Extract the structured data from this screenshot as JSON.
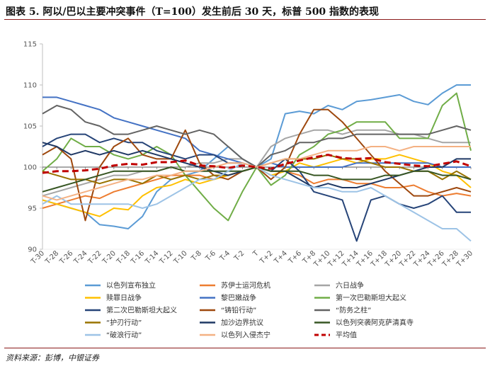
{
  "figure": {
    "title": "图表 5. 阿以/巴以主要冲突事件（T=100）发生前后 30 天，标普 500 指数的表现",
    "source": "资料来源：彭博，中银证券"
  },
  "chart_data": {
    "type": "line",
    "title": "",
    "xlabel": "",
    "ylabel": "",
    "ylim": [
      90,
      115
    ],
    "yticks": [
      90,
      95,
      100,
      105,
      110,
      115
    ],
    "grid": false,
    "legend_position": "bottom",
    "x": [
      "T-30",
      "T-28",
      "T-26",
      "T-24",
      "T-22",
      "T-20",
      "T-18",
      "T-16",
      "T-14",
      "T-12",
      "T-10",
      "T-8",
      "T-6",
      "T-4",
      "T-2",
      "T",
      "T+2",
      "T+4",
      "T+6",
      "T+8",
      "T+10",
      "T+12",
      "T+14",
      "T+16",
      "T+18",
      "T+20",
      "T+22",
      "T+24",
      "T+26",
      "T+28",
      "T+30"
    ],
    "series": [
      {
        "name": "以色列宣布独立",
        "color": "#5b9bd5",
        "style": "solid",
        "values": [
          96.0,
          95.5,
          95.0,
          94.5,
          93.0,
          92.8,
          92.5,
          94.0,
          97.0,
          98.5,
          99.0,
          99.5,
          101.0,
          102.5,
          101.0,
          100.0,
          101.0,
          106.5,
          106.8,
          106.5,
          107.5,
          107.0,
          108.0,
          108.2,
          108.5,
          108.8,
          108.0,
          107.6,
          109.0,
          110.0,
          110.0
        ]
      },
      {
        "name": "苏伊士运河危机",
        "color": "#ed7d31",
        "style": "solid",
        "values": [
          95.0,
          95.5,
          96.0,
          96.5,
          96.2,
          97.0,
          97.5,
          98.0,
          98.5,
          99.0,
          99.0,
          99.0,
          98.5,
          99.0,
          99.5,
          100.0,
          99.5,
          99.5,
          99.0,
          98.0,
          98.5,
          98.5,
          98.0,
          98.0,
          97.5,
          97.5,
          97.8,
          97.0,
          96.5,
          96.8,
          96.5
        ]
      },
      {
        "name": "六日战争",
        "color": "#a5a5a5",
        "style": "solid",
        "values": [
          96.5,
          97.0,
          97.5,
          98.0,
          98.5,
          99.0,
          99.0,
          99.5,
          99.5,
          100.0,
          100.0,
          100.5,
          100.5,
          101.0,
          101.0,
          100.0,
          102.5,
          103.5,
          104.0,
          104.5,
          104.5,
          104.0,
          104.5,
          104.5,
          104.5,
          104.0,
          104.0,
          103.5,
          103.0,
          103.0,
          103.0
        ]
      },
      {
        "name": "赎罪日战争",
        "color": "#ffc000",
        "style": "solid",
        "values": [
          96.0,
          95.5,
          95.0,
          94.5,
          94.0,
          95.0,
          94.8,
          96.5,
          97.5,
          97.8,
          98.5,
          98.0,
          98.5,
          99.0,
          99.5,
          100.0,
          99.0,
          99.5,
          100.5,
          100.0,
          100.5,
          101.0,
          100.5,
          101.0,
          101.0,
          101.5,
          101.0,
          100.5,
          99.5,
          99.0,
          97.5
        ]
      },
      {
        "name": "黎巴嫩战争",
        "color": "#4472c4",
        "style": "solid",
        "values": [
          108.5,
          108.5,
          108.0,
          107.5,
          107.0,
          106.0,
          105.5,
          105.0,
          104.5,
          104.0,
          103.5,
          102.0,
          101.5,
          101.0,
          100.5,
          100.0,
          100.5,
          100.0,
          100.0,
          100.0,
          100.0,
          100.0,
          100.5,
          100.5,
          100.5,
          100.5,
          100.5,
          100.5,
          100.0,
          100.0,
          100.0
        ]
      },
      {
        "name": "第一次巴勒斯坦大起义",
        "color": "#70ad47",
        "style": "solid",
        "values": [
          99.5,
          101.0,
          103.5,
          102.5,
          102.5,
          101.5,
          101.0,
          101.5,
          102.5,
          101.5,
          99.0,
          97.0,
          95.0,
          93.5,
          97.0,
          100.0,
          97.8,
          99.0,
          101.5,
          102.5,
          104.0,
          104.5,
          105.5,
          105.5,
          105.5,
          103.5,
          103.5,
          103.5,
          107.5,
          109.0,
          102.0
        ]
      },
      {
        "name": "第二次巴勒斯坦大起义",
        "color": "#264478",
        "style": "solid",
        "values": [
          102.5,
          103.5,
          104.0,
          104.0,
          103.0,
          103.5,
          103.0,
          103.0,
          102.0,
          101.5,
          101.0,
          101.5,
          101.5,
          100.5,
          100.5,
          100.0,
          99.5,
          101.0,
          99.5,
          97.0,
          96.5,
          96.0,
          91.0,
          96.0,
          96.5,
          95.5,
          95.0,
          95.5,
          96.5,
          94.5,
          94.5
        ]
      },
      {
        "name": "“铸铅行动”",
        "color": "#9e480e",
        "style": "solid",
        "values": [
          101.5,
          102.5,
          101.0,
          93.5,
          100.0,
          102.5,
          103.5,
          101.5,
          101.0,
          101.0,
          104.5,
          100.5,
          99.0,
          98.5,
          99.5,
          100.0,
          98.5,
          100.0,
          104.0,
          107.0,
          107.0,
          105.5,
          103.5,
          101.5,
          99.5,
          98.0,
          96.5,
          96.5,
          97.0,
          97.5,
          97.0
        ]
      },
      {
        "name": "“防务之柱”",
        "color": "#636363",
        "style": "solid",
        "values": [
          106.5,
          107.5,
          107.0,
          105.5,
          105.0,
          104.0,
          104.0,
          104.5,
          105.0,
          104.5,
          104.0,
          104.5,
          104.0,
          102.5,
          101.0,
          100.0,
          101.5,
          102.0,
          103.0,
          103.0,
          103.5,
          103.5,
          104.0,
          104.0,
          104.0,
          104.0,
          104.0,
          104.0,
          104.5,
          105.0,
          104.5
        ]
      },
      {
        "name": "“护刃行动”",
        "color": "#997300",
        "style": "solid",
        "values": [
          99.5,
          99.0,
          98.5,
          98.5,
          98.0,
          98.5,
          98.5,
          98.0,
          99.0,
          98.5,
          99.0,
          98.5,
          99.0,
          99.0,
          99.5,
          100.0,
          100.5,
          101.0,
          101.0,
          101.0,
          101.5,
          101.0,
          101.0,
          100.5,
          100.0,
          100.0,
          99.5,
          99.5,
          98.5,
          99.5,
          98.5
        ]
      },
      {
        "name": "加沙边界抗议",
        "color": "#1f3864",
        "style": "solid",
        "values": [
          103.0,
          102.5,
          101.5,
          102.0,
          101.5,
          102.0,
          101.5,
          102.0,
          101.5,
          101.0,
          100.5,
          100.0,
          99.5,
          99.0,
          99.5,
          100.0,
          99.5,
          99.5,
          98.5,
          97.5,
          98.0,
          97.5,
          97.5,
          98.0,
          98.5,
          99.0,
          99.5,
          100.0,
          100.0,
          101.0,
          101.0
        ]
      },
      {
        "name": "以色列突袭阿克萨清真寺",
        "color": "#375623",
        "style": "solid",
        "values": [
          97.0,
          97.5,
          98.0,
          98.5,
          99.0,
          99.5,
          99.5,
          99.5,
          99.5,
          100.0,
          99.5,
          99.5,
          99.5,
          99.5,
          99.5,
          100.0,
          99.5,
          99.5,
          99.5,
          99.0,
          99.0,
          98.5,
          98.5,
          98.5,
          99.0,
          99.0,
          99.5,
          99.5,
          99.0,
          99.0,
          98.5
        ]
      },
      {
        "name": "“破浪行动”",
        "color": "#9dc3e6",
        "style": "solid",
        "values": [
          95.5,
          96.5,
          95.5,
          95.5,
          95.5,
          95.5,
          95.5,
          95.0,
          95.5,
          96.5,
          97.5,
          98.5,
          98.5,
          99.5,
          100.5,
          100.0,
          99.0,
          98.5,
          98.0,
          97.5,
          97.5,
          97.0,
          97.0,
          97.5,
          96.5,
          95.5,
          94.5,
          93.5,
          92.5,
          92.5,
          91.0
        ]
      },
      {
        "name": "以色列入侵杰宁",
        "color": "#f4b183",
        "style": "solid",
        "values": [
          96.5,
          96.0,
          96.5,
          97.0,
          97.5,
          98.0,
          98.5,
          98.5,
          99.0,
          99.0,
          99.5,
          99.5,
          100.0,
          100.5,
          100.5,
          100.0,
          100.5,
          101.0,
          101.0,
          101.5,
          102.0,
          102.0,
          102.0,
          102.5,
          102.5,
          102.0,
          102.5,
          102.5,
          102.5,
          102.5,
          102.5
        ]
      },
      {
        "name": "平均值",
        "color": "#c00000",
        "style": "dashed",
        "values": [
          99.3,
          99.5,
          99.5,
          99.6,
          99.8,
          100.2,
          100.4,
          100.3,
          100.6,
          100.6,
          100.8,
          100.2,
          100.1,
          99.9,
          100.2,
          100.0,
          99.8,
          100.4,
          100.8,
          101.2,
          101.5,
          101.1,
          101.0,
          101.1,
          100.6,
          100.4,
          100.2,
          100.1,
          100.4,
          100.7,
          100.1
        ]
      }
    ]
  }
}
